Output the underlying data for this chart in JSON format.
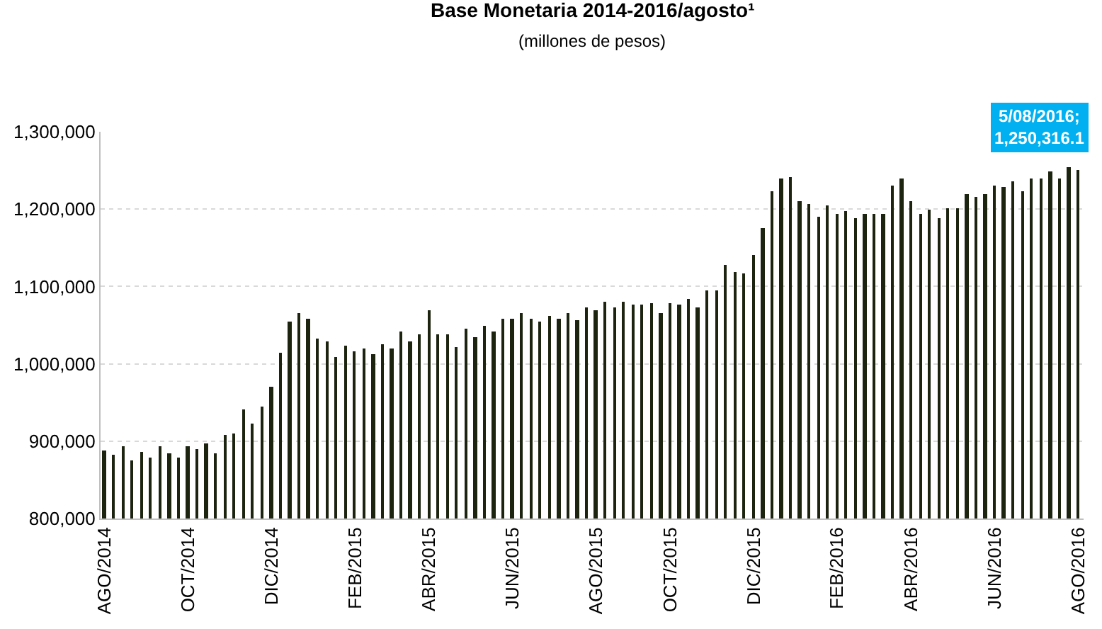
{
  "chart_data": {
    "type": "bar",
    "title": "Base Monetaria 2014-2016/agosto¹",
    "subtitle": "(millones de pesos)",
    "x": [
      "2014-08-01",
      "2014-08-08",
      "2014-08-15",
      "2014-08-22",
      "2014-08-29",
      "2014-09-05",
      "2014-09-12",
      "2014-09-19",
      "2014-09-26",
      "2014-10-03",
      "2014-10-10",
      "2014-10-17",
      "2014-10-24",
      "2014-10-31",
      "2014-11-07",
      "2014-11-14",
      "2014-11-21",
      "2014-11-28",
      "2014-12-05",
      "2014-12-12",
      "2014-12-19",
      "2014-12-26",
      "2015-01-02",
      "2015-01-09",
      "2015-01-16",
      "2015-01-23",
      "2015-01-30",
      "2015-02-06",
      "2015-02-13",
      "2015-02-20",
      "2015-02-27",
      "2015-03-06",
      "2015-03-13",
      "2015-03-20",
      "2015-03-27",
      "2015-04-03",
      "2015-04-10",
      "2015-04-17",
      "2015-04-24",
      "2015-05-01",
      "2015-05-08",
      "2015-05-15",
      "2015-05-22",
      "2015-05-29",
      "2015-06-05",
      "2015-06-12",
      "2015-06-19",
      "2015-06-26",
      "2015-07-03",
      "2015-07-10",
      "2015-07-17",
      "2015-07-24",
      "2015-07-31",
      "2015-08-07",
      "2015-08-14",
      "2015-08-21",
      "2015-08-28",
      "2015-09-04",
      "2015-09-11",
      "2015-09-18",
      "2015-09-25",
      "2015-10-02",
      "2015-10-09",
      "2015-10-16",
      "2015-10-23",
      "2015-10-30",
      "2015-11-06",
      "2015-11-13",
      "2015-11-20",
      "2015-11-27",
      "2015-12-04",
      "2015-12-11",
      "2015-12-18",
      "2015-12-25",
      "2016-01-01",
      "2016-01-08",
      "2016-01-15",
      "2016-01-22",
      "2016-01-29",
      "2016-02-05",
      "2016-02-12",
      "2016-02-19",
      "2016-02-26",
      "2016-03-04",
      "2016-03-11",
      "2016-03-18",
      "2016-03-25",
      "2016-04-01",
      "2016-04-08",
      "2016-04-15",
      "2016-04-22",
      "2016-04-29",
      "2016-05-06",
      "2016-05-13",
      "2016-05-20",
      "2016-05-27",
      "2016-06-03",
      "2016-06-10",
      "2016-06-17",
      "2016-06-24",
      "2016-07-01",
      "2016-07-08",
      "2016-07-15",
      "2016-07-22",
      "2016-07-29",
      "2016-08-05"
    ],
    "values": [
      888000,
      882000,
      893000,
      875000,
      886000,
      878000,
      893000,
      885000,
      879000,
      893000,
      889000,
      897000,
      885000,
      908000,
      909000,
      941000,
      923000,
      945000,
      971000,
      1015000,
      1054000,
      1065000,
      1059000,
      1032000,
      1029000,
      1008000,
      1024000,
      1016000,
      1020000,
      1012000,
      1025000,
      1020000,
      1042000,
      1029000,
      1039000,
      1069000,
      1039000,
      1038000,
      1022000,
      1046000,
      1034000,
      1050000,
      1042000,
      1058000,
      1058000,
      1065000,
      1058000,
      1054000,
      1061000,
      1059000,
      1065000,
      1057000,
      1073000,
      1069000,
      1080000,
      1072000,
      1080000,
      1077000,
      1077000,
      1078000,
      1066000,
      1078000,
      1076000,
      1084000,
      1073000,
      1095000,
      1094000,
      1127000,
      1118000,
      1117000,
      1140000,
      1175000,
      1223000,
      1240000,
      1242000,
      1210000,
      1207000,
      1190000,
      1204000,
      1193000,
      1197000,
      1188000,
      1193000,
      1193000,
      1193000,
      1230000,
      1239000,
      1210000,
      1194000,
      1199000,
      1188000,
      1201000,
      1202000,
      1220000,
      1216000,
      1220000,
      1231000,
      1229000,
      1235000,
      1224000,
      1240000,
      1240000,
      1249000,
      1240000,
      1254000,
      1250316.1
    ],
    "color": "#1c2410",
    "xlim": [
      "2014-07-29",
      "2016-08-09"
    ],
    "xticks": [
      {
        "value": "2014-08-01",
        "label": "AGO/2014"
      },
      {
        "value": "2014-10-03",
        "label": "OCT/2014"
      },
      {
        "value": "2014-12-05",
        "label": "DIC/2014"
      },
      {
        "value": "2015-02-06",
        "label": "FEB/2015"
      },
      {
        "value": "2015-04-03",
        "label": "ABR/2015"
      },
      {
        "value": "2015-06-05",
        "label": "JUN/2015"
      },
      {
        "value": "2015-08-07",
        "label": "AGO/2015"
      },
      {
        "value": "2015-10-02",
        "label": "OCT/2015"
      },
      {
        "value": "2015-12-04",
        "label": "DIC/2015"
      },
      {
        "value": "2016-02-05",
        "label": "FEB/2016"
      },
      {
        "value": "2016-04-01",
        "label": "ABR/2016"
      },
      {
        "value": "2016-06-03",
        "label": "JUN/2016"
      },
      {
        "value": "2016-08-05",
        "label": "AGO/2016"
      }
    ],
    "ylim": [
      800000,
      1300000
    ],
    "yticks": [
      {
        "value": 800000,
        "label": "800,000"
      },
      {
        "value": 900000,
        "label": "900,000"
      },
      {
        "value": 1000000,
        "label": "1,000,000"
      },
      {
        "value": 1100000,
        "label": "1,100,000"
      },
      {
        "value": 1200000,
        "label": "1,200,000"
      },
      {
        "value": 1300000,
        "label": "1,300,000"
      }
    ],
    "grid": "y",
    "annotations": [
      {
        "text": "5/08/2016;\n1,250,316.1",
        "x": "2016-08-05",
        "y": 1250316.1
      }
    ]
  }
}
